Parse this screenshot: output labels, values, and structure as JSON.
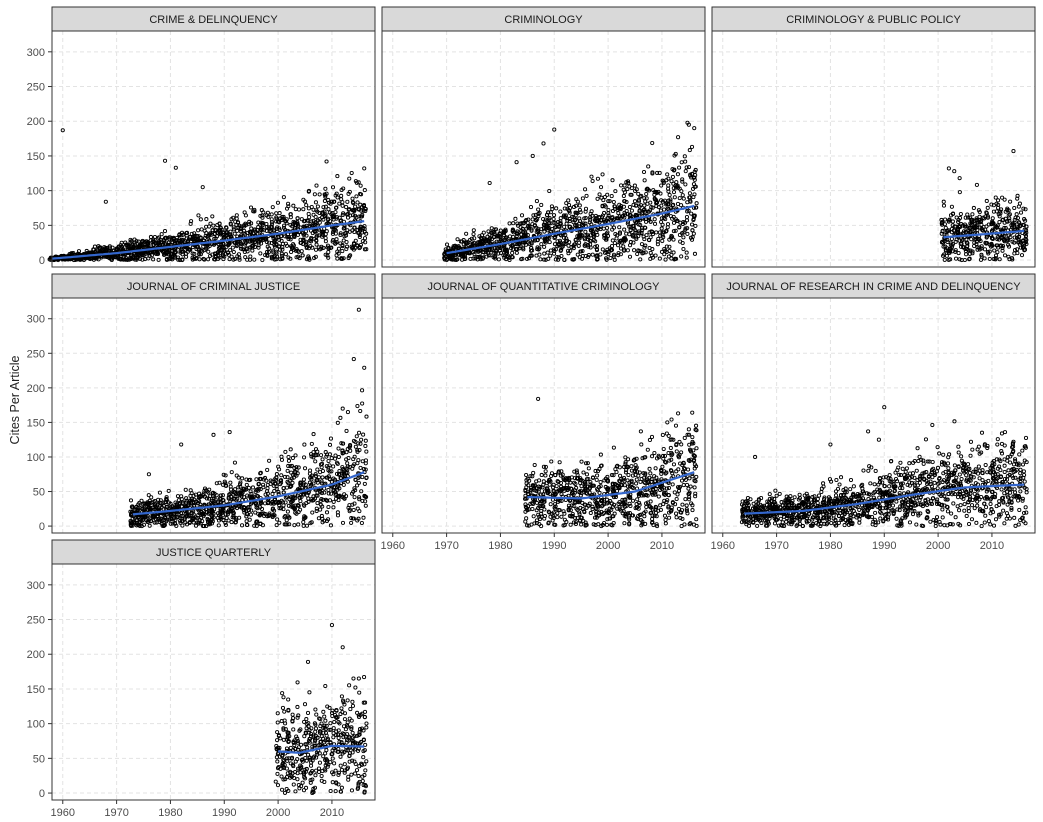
{
  "chart_data": {
    "type": "scatter",
    "layout": "facet_wrap",
    "ylabel": "Cites Per Article",
    "xlabel": "",
    "xlim": [
      1958,
      2018
    ],
    "ylim": [
      -10,
      330
    ],
    "x_ticks": [
      1960,
      1970,
      1980,
      1990,
      2000,
      2010
    ],
    "y_ticks": [
      0,
      50,
      100,
      150,
      200,
      250,
      300
    ],
    "grid": true,
    "point_color": "#000000",
    "trend_color": "#3366cc",
    "strip_fill": "#d9d9d9",
    "panels": [
      {
        "title": "CRIME & DELINQUENCY",
        "year_range": [
          1958,
          2016
        ],
        "trend": [
          [
            1958,
            2
          ],
          [
            1970,
            10
          ],
          [
            1980,
            19
          ],
          [
            1990,
            28
          ],
          [
            2000,
            38
          ],
          [
            2010,
            50
          ],
          [
            2016,
            56
          ]
        ],
        "outliers": [
          [
            1960,
            187
          ],
          [
            1979,
            143
          ],
          [
            1981,
            133
          ],
          [
            2009,
            142
          ],
          [
            2016,
            132
          ],
          [
            1968,
            84
          ],
          [
            1986,
            105
          ]
        ]
      },
      {
        "title": "CRIMINOLOGY",
        "year_range": [
          1970,
          2016
        ],
        "trend": [
          [
            1970,
            10
          ],
          [
            1980,
            23
          ],
          [
            1990,
            38
          ],
          [
            2000,
            52
          ],
          [
            2010,
            67
          ],
          [
            2016,
            78
          ]
        ],
        "outliers": [
          [
            1990,
            188
          ],
          [
            2015,
            195
          ],
          [
            2016,
            190
          ],
          [
            2013,
            177
          ],
          [
            1988,
            168
          ],
          [
            1986,
            150
          ],
          [
            1983,
            141
          ],
          [
            1978,
            111
          ]
        ]
      },
      {
        "title": "CRIMINOLOGY & PUBLIC POLICY",
        "year_range": [
          2001,
          2016
        ],
        "trend": [
          [
            2001,
            33
          ],
          [
            2008,
            37
          ],
          [
            2016,
            42
          ]
        ],
        "outliers": [
          [
            2014,
            157
          ],
          [
            2002,
            132
          ],
          [
            2003,
            128
          ],
          [
            2004,
            118
          ]
        ]
      },
      {
        "title": "JOURNAL OF CRIMINAL JUSTICE",
        "year_range": [
          1973,
          2016
        ],
        "trend": [
          [
            1973,
            17
          ],
          [
            1980,
            22
          ],
          [
            1990,
            30
          ],
          [
            2000,
            43
          ],
          [
            2010,
            60
          ],
          [
            2016,
            78
          ]
        ],
        "outliers": [
          [
            2015,
            313
          ],
          [
            2016,
            229
          ],
          [
            2012,
            170
          ],
          [
            1988,
            132
          ],
          [
            1991,
            136
          ],
          [
            1982,
            118
          ],
          [
            1976,
            75
          ]
        ]
      },
      {
        "title": "JOURNAL OF QUANTITATIVE CRIMINOLOGY",
        "year_range": [
          1985,
          2016
        ],
        "trend": [
          [
            1985,
            42
          ],
          [
            1995,
            40
          ],
          [
            2005,
            50
          ],
          [
            2016,
            78
          ]
        ],
        "outliers": [
          [
            1987,
            184
          ],
          [
            2013,
            163
          ],
          [
            2011,
            150
          ],
          [
            2015,
            140
          ]
        ]
      },
      {
        "title": "JOURNAL OF RESEARCH IN CRIME AND DELINQUENCY",
        "year_range": [
          1964,
          2016
        ],
        "trend": [
          [
            1964,
            18
          ],
          [
            1975,
            22
          ],
          [
            1985,
            32
          ],
          [
            1995,
            45
          ],
          [
            2005,
            56
          ],
          [
            2016,
            60
          ]
        ],
        "outliers": [
          [
            1990,
            172
          ],
          [
            1989,
            125
          ],
          [
            1987,
            137
          ],
          [
            1980,
            118
          ],
          [
            1966,
            100
          ],
          [
            2014,
            122
          ],
          [
            2011,
            118
          ]
        ]
      },
      {
        "title": "JUSTICE QUARTERLY",
        "year_range": [
          2000,
          2016
        ],
        "trend": [
          [
            2000,
            60
          ],
          [
            2004,
            58
          ],
          [
            2010,
            68
          ],
          [
            2016,
            67
          ]
        ],
        "outliers": [
          [
            2010,
            242
          ],
          [
            2012,
            210
          ],
          [
            2014,
            165
          ],
          [
            2015,
            165
          ],
          [
            2001,
            138
          ],
          [
            2005,
            128
          ]
        ]
      }
    ]
  }
}
